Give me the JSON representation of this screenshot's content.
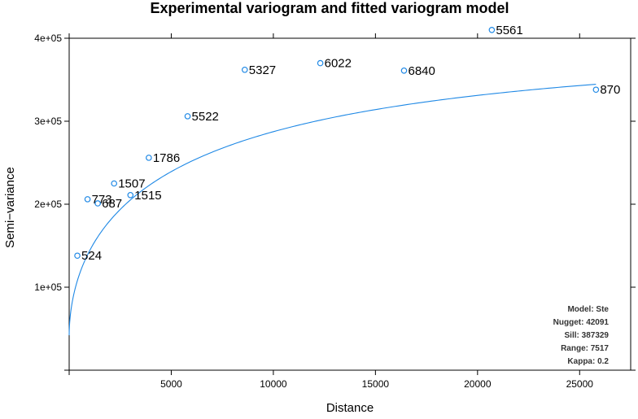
{
  "chart_data": {
    "type": "scatter",
    "title": "Experimental variogram and fitted variogram model",
    "xlabel": "Distance",
    "ylabel": "Semi−variance",
    "xlim": [
      0,
      27500
    ],
    "ylim": [
      0,
      400000
    ],
    "x_ticks": [
      5000,
      10000,
      15000,
      20000,
      25000
    ],
    "x_tick_labels": [
      "5000",
      "10000",
      "15000",
      "20000",
      "25000"
    ],
    "y_ticks": [
      100000,
      200000,
      300000,
      400000
    ],
    "y_tick_labels": [
      "1e+05",
      "2e+05",
      "3e+05",
      "4e+05"
    ],
    "points": [
      {
        "x": 400,
        "y": 138000,
        "label": "524"
      },
      {
        "x": 900,
        "y": 206000,
        "label": "773"
      },
      {
        "x": 1400,
        "y": 201000,
        "label": "687"
      },
      {
        "x": 2200,
        "y": 225000,
        "label": "1507"
      },
      {
        "x": 3000,
        "y": 211000,
        "label": "1515"
      },
      {
        "x": 3900,
        "y": 256000,
        "label": "1786"
      },
      {
        "x": 5800,
        "y": 306000,
        "label": "5522"
      },
      {
        "x": 8600,
        "y": 362000,
        "label": "5327"
      },
      {
        "x": 12300,
        "y": 370000,
        "label": "6022"
      },
      {
        "x": 16400,
        "y": 361000,
        "label": "6840"
      },
      {
        "x": 20700,
        "y": 410000,
        "label": "5561"
      },
      {
        "x": 25800,
        "y": 338000,
        "label": "870"
      }
    ],
    "model": {
      "name": "Ste",
      "nugget": 42091,
      "sill": 387329,
      "range": 7517,
      "kappa": 0.2,
      "x_max": 25800
    },
    "model_info": [
      "Model: Ste",
      "Nugget: 42091",
      "Sill: 387329",
      "Range: 7517",
      "Kappa: 0.2"
    ],
    "colors": {
      "points": "#1e88e5",
      "line": "#1e88e5",
      "axes": "#000000"
    }
  }
}
